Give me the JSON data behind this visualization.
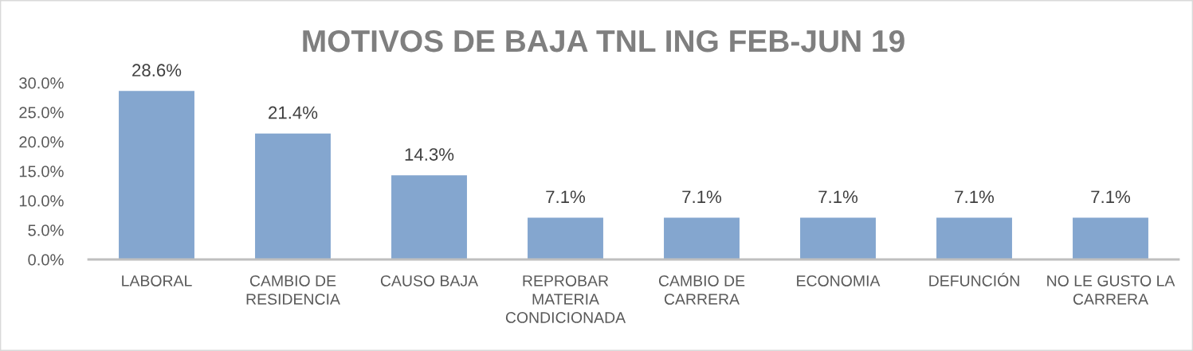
{
  "chart_data": {
    "type": "bar",
    "title": "MOTIVOS DE BAJA TNL ING FEB-JUN 19",
    "categories": [
      "LABORAL",
      "CAMBIO DE\nRESIDENCIA",
      "CAUSO BAJA",
      "REPROBAR\nMATERIA\nCONDICIONADA",
      "CAMBIO DE\nCARRERA",
      "ECONOMIA",
      "DEFUNCIÓN",
      "NO LE GUSTO LA\nCARRERA"
    ],
    "values": [
      28.6,
      21.4,
      14.3,
      7.1,
      7.1,
      7.1,
      7.1,
      7.1
    ],
    "color": "#84a6cf",
    "value_labels": [
      "28.6%",
      "21.4%",
      "14.3%",
      "7.1%",
      "7.1%",
      "7.1%",
      "7.1%",
      "7.1%"
    ],
    "ylim": [
      0,
      30
    ],
    "yticks": [
      {
        "value": 0,
        "label": "0.0%"
      },
      {
        "value": 5,
        "label": "5.0%"
      },
      {
        "value": 10,
        "label": "10.0%"
      },
      {
        "value": 15,
        "label": "15.0%"
      },
      {
        "value": 20,
        "label": "20.0%"
      },
      {
        "value": 25,
        "label": "25.0%"
      },
      {
        "value": 30,
        "label": "30.0%"
      }
    ]
  }
}
